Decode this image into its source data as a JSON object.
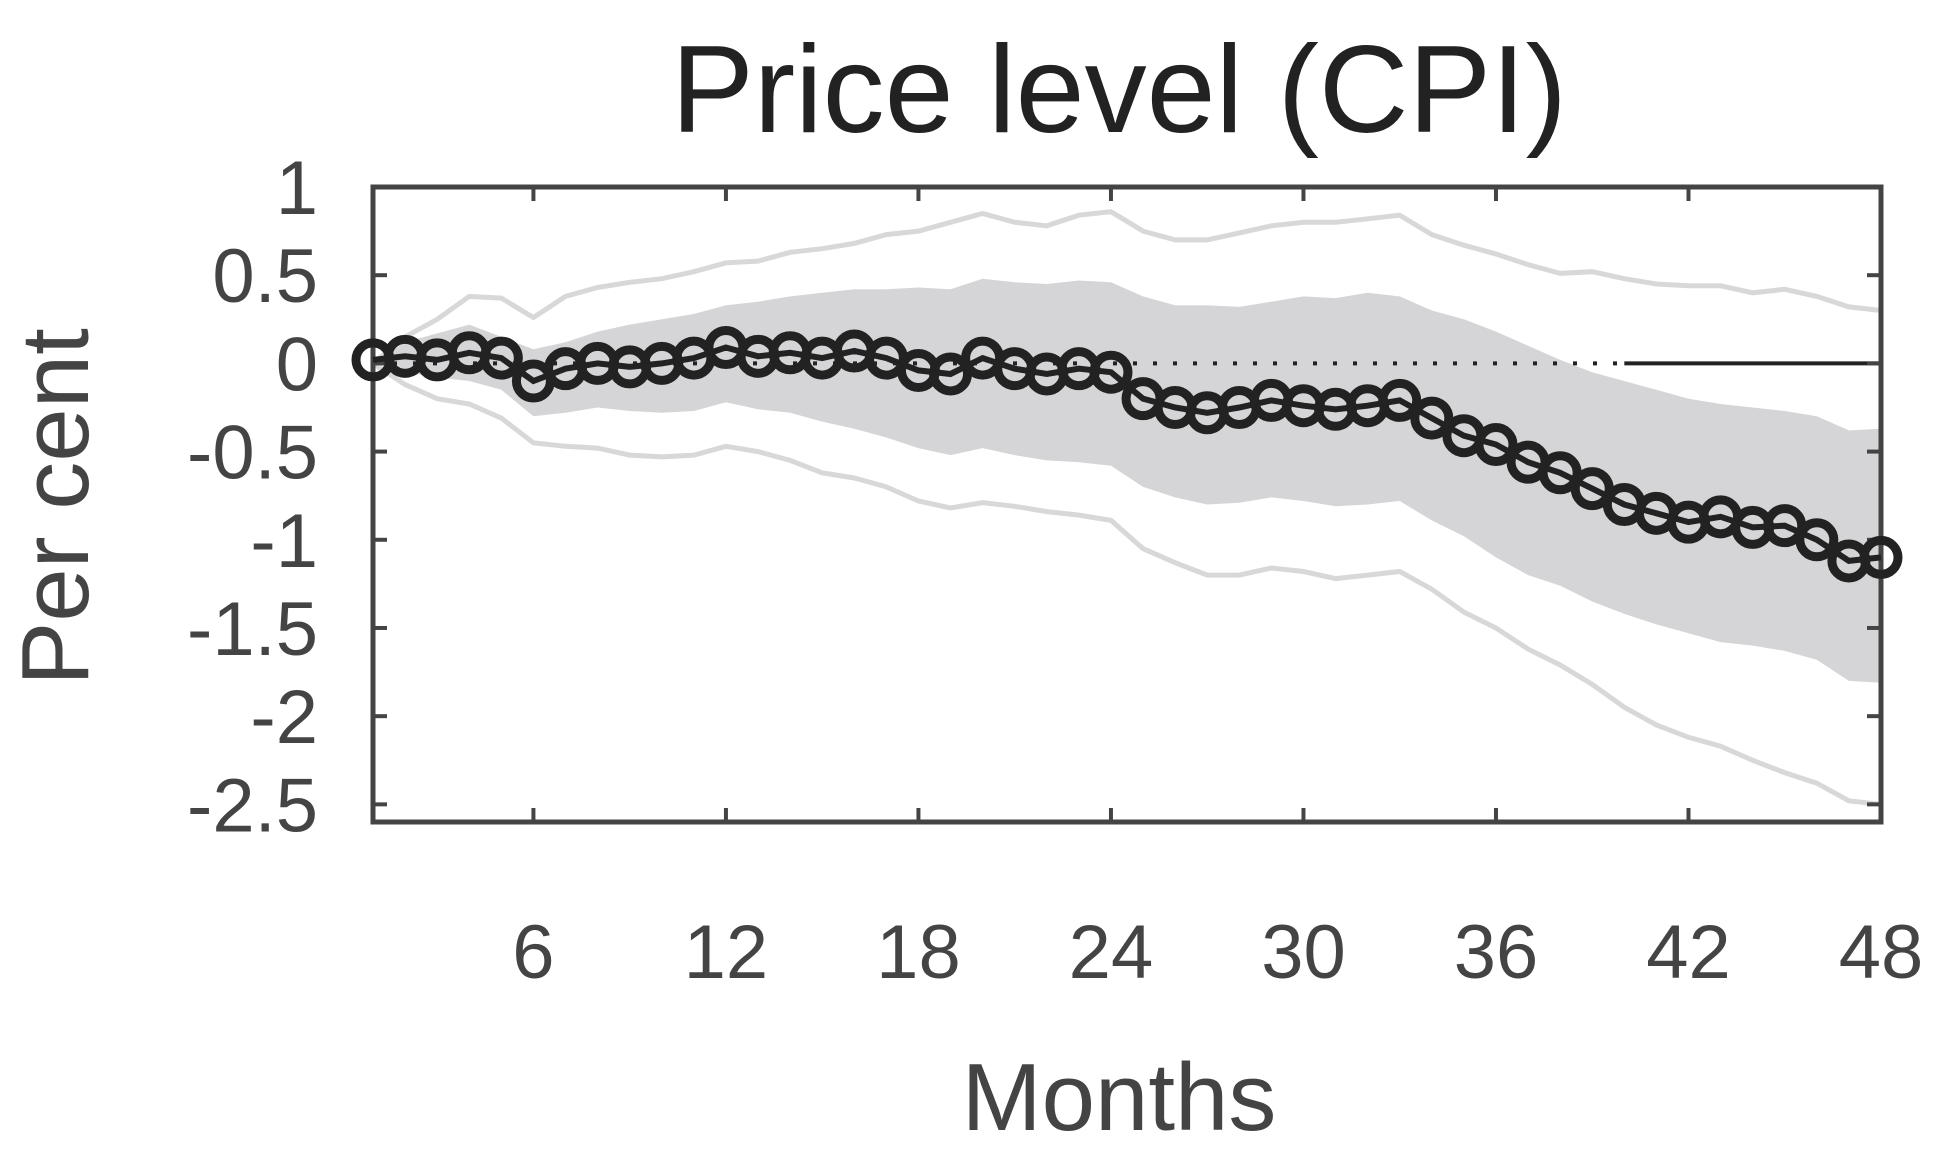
{
  "chart_data": {
    "type": "line",
    "title": "Price level (CPI)",
    "xlabel": "Months",
    "ylabel": "Per cent",
    "xlim": [
      1,
      48
    ],
    "ylim": [
      -2.6,
      1.0
    ],
    "xticks": [
      6,
      12,
      18,
      24,
      30,
      36,
      42,
      48
    ],
    "yticks": [
      1,
      0.5,
      0,
      -0.5,
      -1,
      -1.5,
      -2,
      -2.5
    ],
    "ytick_labels": [
      "1",
      "0.5",
      "0",
      "-0.5",
      "-1",
      "-1.5",
      "-2",
      "-2.5"
    ],
    "grid": false,
    "legend": "none",
    "colors": {
      "line": "#222222",
      "band_fill": "#d5d5d7",
      "outer_band": "#d8d8d8",
      "axes": "#444444"
    },
    "x": [
      1,
      2,
      3,
      4,
      5,
      6,
      7,
      8,
      9,
      10,
      11,
      12,
      13,
      14,
      15,
      16,
      17,
      18,
      19,
      20,
      21,
      22,
      23,
      24,
      25,
      26,
      27,
      28,
      29,
      30,
      31,
      32,
      33,
      34,
      35,
      36,
      37,
      38,
      39,
      40,
      41,
      42,
      43,
      44,
      45,
      46,
      47,
      48
    ],
    "series": [
      {
        "values": [
          0.02,
          0.04,
          0.02,
          0.06,
          0.03,
          -0.1,
          -0.03,
          0.0,
          -0.02,
          0.0,
          0.03,
          0.09,
          0.04,
          0.06,
          0.03,
          0.07,
          0.03,
          -0.04,
          -0.06,
          0.03,
          -0.03,
          -0.06,
          -0.03,
          -0.05,
          -0.2,
          -0.25,
          -0.28,
          -0.25,
          -0.21,
          -0.24,
          -0.26,
          -0.24,
          -0.21,
          -0.31,
          -0.41,
          -0.46,
          -0.56,
          -0.62,
          -0.71,
          -0.8,
          -0.85,
          -0.9,
          -0.87,
          -0.93,
          -0.92,
          -1.0,
          -1.12,
          -1.1
        ]
      }
    ],
    "inner_band": {
      "upper": [
        0.0,
        0.12,
        0.17,
        0.22,
        0.15,
        0.08,
        0.12,
        0.18,
        0.22,
        0.25,
        0.28,
        0.33,
        0.35,
        0.38,
        0.4,
        0.42,
        0.42,
        0.43,
        0.42,
        0.48,
        0.46,
        0.45,
        0.47,
        0.46,
        0.38,
        0.33,
        0.33,
        0.32,
        0.35,
        0.38,
        0.37,
        0.4,
        0.38,
        0.3,
        0.25,
        0.18,
        0.1,
        0.02,
        -0.05,
        -0.1,
        -0.15,
        -0.2,
        -0.23,
        -0.25,
        -0.27,
        -0.3,
        -0.38,
        -0.37
      ],
      "lower": [
        0.0,
        -0.05,
        -0.08,
        -0.1,
        -0.15,
        -0.3,
        -0.28,
        -0.25,
        -0.27,
        -0.28,
        -0.27,
        -0.22,
        -0.26,
        -0.28,
        -0.33,
        -0.37,
        -0.42,
        -0.48,
        -0.52,
        -0.48,
        -0.52,
        -0.55,
        -0.56,
        -0.58,
        -0.7,
        -0.76,
        -0.8,
        -0.79,
        -0.76,
        -0.78,
        -0.81,
        -0.8,
        -0.78,
        -0.89,
        -0.98,
        -1.1,
        -1.2,
        -1.26,
        -1.35,
        -1.42,
        -1.48,
        -1.53,
        -1.58,
        -1.6,
        -1.63,
        -1.68,
        -1.8,
        -1.81
      ]
    },
    "outer_band": {
      "upper": [
        0.0,
        0.15,
        0.25,
        0.38,
        0.37,
        0.26,
        0.38,
        0.43,
        0.46,
        0.48,
        0.52,
        0.57,
        0.58,
        0.63,
        0.65,
        0.68,
        0.73,
        0.75,
        0.8,
        0.85,
        0.8,
        0.78,
        0.84,
        0.86,
        0.75,
        0.7,
        0.7,
        0.74,
        0.78,
        0.8,
        0.8,
        0.82,
        0.84,
        0.73,
        0.67,
        0.62,
        0.56,
        0.51,
        0.52,
        0.48,
        0.45,
        0.44,
        0.44,
        0.4,
        0.42,
        0.38,
        0.32,
        0.3
      ],
      "lower": [
        0.0,
        -0.12,
        -0.2,
        -0.23,
        -0.31,
        -0.45,
        -0.47,
        -0.48,
        -0.52,
        -0.53,
        -0.52,
        -0.47,
        -0.5,
        -0.55,
        -0.62,
        -0.65,
        -0.7,
        -0.78,
        -0.82,
        -0.79,
        -0.81,
        -0.84,
        -0.86,
        -0.89,
        -1.05,
        -1.13,
        -1.2,
        -1.2,
        -1.16,
        -1.18,
        -1.22,
        -1.2,
        -1.18,
        -1.28,
        -1.41,
        -1.5,
        -1.62,
        -1.71,
        -1.82,
        -1.95,
        -2.05,
        -2.12,
        -2.17,
        -2.25,
        -2.32,
        -2.38,
        -2.48,
        -2.5
      ]
    }
  }
}
